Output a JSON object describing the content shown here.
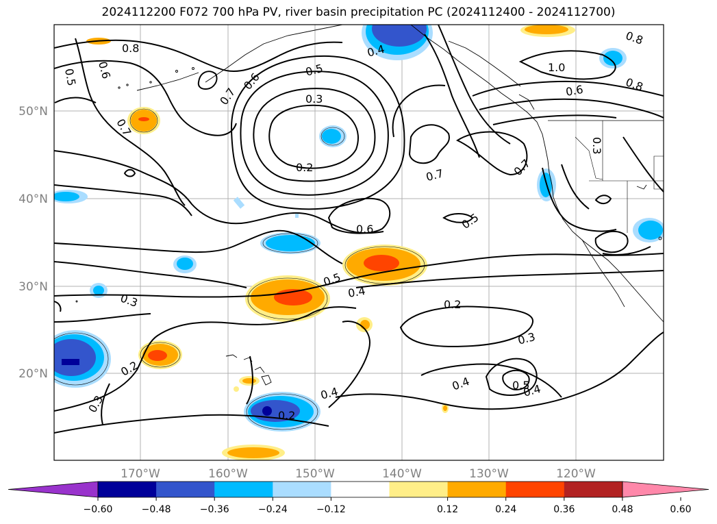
{
  "title": "2024112200 F072 700 hPa PV, river basin precipitation PC (2024112400 - 2024112700)",
  "axes": {
    "lon_ticks": [
      "170°W",
      "160°W",
      "150°W",
      "140°W",
      "130°W",
      "120°W"
    ],
    "lat_ticks": [
      "50°N",
      "40°N",
      "30°N",
      "20°N"
    ],
    "tick_color": "#808080"
  },
  "contour_labels": [
    "0.8",
    "0.5",
    "0.6",
    "0.7",
    "0.6",
    "0.5",
    "0.4",
    "0.3",
    "0.2",
    "0.7",
    "0.7",
    "0.8",
    "1.0",
    "0.6",
    "0.8",
    "0.3",
    "0.7",
    "0.6",
    "0.5",
    "0.5",
    "0.4",
    "0.3",
    "0.2",
    "0.2",
    "0.3",
    "0.3",
    "0.4",
    "0.2",
    "0.4",
    "0.5",
    "0.4"
  ],
  "colorbar": {
    "ticks": [
      "−0.60",
      "−0.48",
      "−0.36",
      "−0.24",
      "−0.12",
      "0.12",
      "0.24",
      "0.36",
      "0.48",
      "0.60"
    ],
    "colors": [
      "#9933cc",
      "#000099",
      "#3355cc",
      "#00bbff",
      "#aaddff",
      "#ffffff",
      "#ffee88",
      "#ffaa00",
      "#ff4400",
      "#b22222",
      "#ff88aa"
    ]
  }
}
